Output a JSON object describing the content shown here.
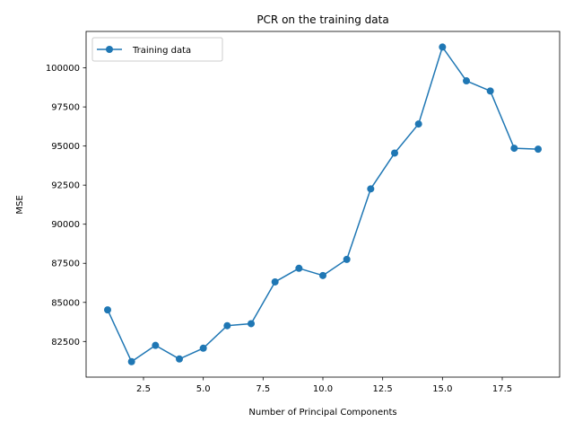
{
  "chart_data": {
    "type": "line",
    "title": "PCR on the training data",
    "xlabel": "Number of Principal Components",
    "ylabel": "MSE",
    "xlim": [
      0.1,
      19.9
    ],
    "ylim": [
      80220,
      102330
    ],
    "xticks": [
      2.5,
      5.0,
      7.5,
      10.0,
      12.5,
      15.0,
      17.5
    ],
    "xtick_labels": [
      "2.5",
      "5.0",
      "7.5",
      "10.0",
      "12.5",
      "15.0",
      "17.5"
    ],
    "yticks": [
      82500,
      85000,
      87500,
      90000,
      92500,
      95000,
      97500,
      100000
    ],
    "ytick_labels": [
      "82500",
      "85000",
      "87500",
      "90000",
      "92500",
      "95000",
      "97500",
      "100000"
    ],
    "grid": false,
    "legend_position": "top-left",
    "series": [
      {
        "name": "Training data",
        "color": "#1f77b4",
        "marker": "circle",
        "x": [
          1,
          2,
          3,
          4,
          5,
          6,
          7,
          8,
          9,
          10,
          11,
          12,
          13,
          14,
          15,
          16,
          17,
          18,
          19
        ],
        "y": [
          84520,
          81210,
          82250,
          81380,
          82070,
          83510,
          83640,
          86310,
          87180,
          86720,
          87750,
          92260,
          94550,
          96410,
          101330,
          99170,
          98520,
          94860,
          94800
        ]
      }
    ]
  }
}
